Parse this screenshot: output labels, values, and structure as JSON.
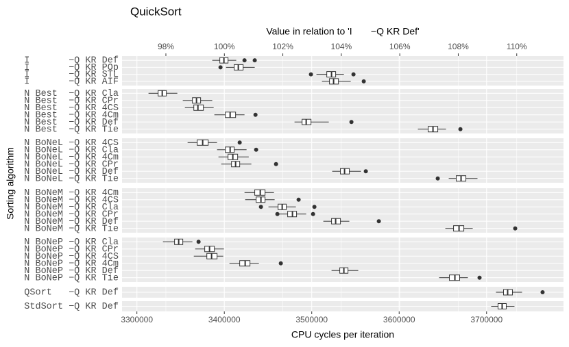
{
  "chart_data": {
    "type": "boxplot",
    "title": "QuickSort",
    "x2_label": "Value in relation to 'I       −Q KR Def'",
    "x_label": "CPU cycles per iteration",
    "y_label": "Sorting algorithm",
    "xlim": [
      3283000,
      3788000
    ],
    "xticks": [
      3300000,
      3400000,
      3500000,
      3600000,
      3700000
    ],
    "x2lim": [
      96.5,
      111.6
    ],
    "x2ticks": [
      {
        "value": 98,
        "label": "98%"
      },
      {
        "value": 100,
        "label": "100%"
      },
      {
        "value": 102,
        "label": "102%"
      },
      {
        "value": 104,
        "label": "104%"
      },
      {
        "value": 106,
        "label": "106%"
      },
      {
        "value": 108,
        "label": "108%"
      },
      {
        "value": 110,
        "label": "110%"
      }
    ],
    "grid": true,
    "panels": [
      {
        "categories": [
          "I       −Q KR Def",
          "I       −Q KR POp",
          "I       −Q KR STL",
          "I       −Q KR AIF"
        ],
        "boxes": [
          {
            "whislo": 3386200,
            "q1": 3394850,
            "med": 3399550,
            "q3": 3404250,
            "whishi": 3413650,
            "fliers": [
              3423100,
              3434800
            ]
          },
          {
            "whislo": 3401900,
            "q1": 3411300,
            "med": 3416000,
            "q3": 3421500,
            "whishi": 3434800,
            "fliers": [
              3395650
            ]
          },
          {
            "whislo": 3505400,
            "q1": 3517200,
            "med": 3522650,
            "q3": 3527350,
            "whishi": 3536800,
            "fliers": [
              3499100,
              3547750
            ]
          },
          {
            "whislo": 3511700,
            "q1": 3520300,
            "med": 3525000,
            "q3": 3530500,
            "whishi": 3544600,
            "fliers": [
              3559500
            ]
          }
        ]
      },
      {
        "categories": [
          "N Best  −Q KR Cla",
          "N Best  −Q KR CPr",
          "N Best  −Q KR 4CS",
          "N Best  −Q KR 4Cm",
          "N Best  −Q KR Def",
          "N Best  −Q KR Tie"
        ],
        "boxes": [
          {
            "whislo": 3313300,
            "q1": 3324300,
            "med": 3329000,
            "q3": 3333700,
            "whishi": 3346250,
            "fliers": []
          },
          {
            "whislo": 3352500,
            "q1": 3363500,
            "med": 3368200,
            "q3": 3372900,
            "whishi": 3386200,
            "fliers": []
          },
          {
            "whislo": 3354900,
            "q1": 3365100,
            "med": 3369800,
            "q3": 3376050,
            "whishi": 3387800,
            "fliers": []
          },
          {
            "whislo": 3388600,
            "q1": 3401150,
            "med": 3406650,
            "q3": 3412900,
            "whishi": 3423100,
            "fliers": [
              3435650
            ]
          },
          {
            "whislo": 3480300,
            "q1": 3488950,
            "med": 3493650,
            "q3": 3499150,
            "whishi": 3519500,
            "fliers": [
              3545400
            ]
          },
          {
            "whislo": 3621400,
            "q1": 3633200,
            "med": 3638700,
            "q3": 3644150,
            "whishi": 3653600,
            "fliers": [
              3670050
            ]
          }
        ]
      },
      {
        "categories": [
          "N BoNeL −Q KR 4CS",
          "N BoNeL −Q KR Cla",
          "N BoNeL −Q KR 4Cm",
          "N BoNeL −Q KR CPr",
          "N BoNeL −Q KR Def",
          "N BoNeL −Q KR Tie"
        ],
        "boxes": [
          {
            "whislo": 3358000,
            "q1": 3369000,
            "med": 3375250,
            "q3": 3381550,
            "whishi": 3391700,
            "fliers": [
              3417600
            ]
          },
          {
            "whislo": 3391700,
            "q1": 3401150,
            "med": 3406650,
            "q3": 3411300,
            "whishi": 3425450,
            "fliers": [
              3436400
            ]
          },
          {
            "whislo": 3393300,
            "q1": 3404250,
            "med": 3409750,
            "q3": 3415250,
            "whishi": 3427950,
            "fliers": []
          },
          {
            "whislo": 3396450,
            "q1": 3408200,
            "med": 3412900,
            "q3": 3417600,
            "whishi": 3430950,
            "fliers": [
              3459150
            ]
          },
          {
            "whislo": 3523400,
            "q1": 3532800,
            "med": 3537550,
            "q3": 3543000,
            "whishi": 3556350,
            "fliers": [
              3561850
            ]
          },
          {
            "whislo": 3656700,
            "q1": 3665300,
            "med": 3670800,
            "q3": 3676300,
            "whishi": 3689600,
            "fliers": [
              3644150
            ]
          }
        ]
      },
      {
        "categories": [
          "N BoNeM −Q KR 4Cm",
          "N BoNeM −Q KR 4CS",
          "N BoNeM −Q KR Cla",
          "N BoNeM −Q KR CPr",
          "N BoNeM −Q KR Def",
          "N BoNeM −Q KR Tie"
        ],
        "boxes": [
          {
            "whislo": 3423100,
            "q1": 3434800,
            "med": 3441100,
            "q3": 3446600,
            "whishi": 3456800,
            "fliers": []
          },
          {
            "whislo": 3423850,
            "q1": 3436400,
            "med": 3441900,
            "q3": 3446600,
            "whishi": 3457550,
            "fliers": [
              3485000
            ]
          },
          {
            "whislo": 3450500,
            "q1": 3461500,
            "med": 3466200,
            "q3": 3470900,
            "whishi": 3481900,
            "fliers": [
              3441900,
              3503050
            ]
          },
          {
            "whislo": 3461500,
            "q1": 3472450,
            "med": 3477950,
            "q3": 3482650,
            "whishi": 3493650,
            "fliers": [
              3460700,
              3501500
            ]
          },
          {
            "whislo": 3513250,
            "q1": 3522650,
            "med": 3527350,
            "q3": 3532850,
            "whishi": 3543000,
            "fliers": [
              3576750
            ]
          },
          {
            "whislo": 3652800,
            "q1": 3662200,
            "med": 3668500,
            "q3": 3673950,
            "whishi": 3684150,
            "fliers": [
              3732750
            ]
          }
        ]
      },
      {
        "categories": [
          "N BoNeP −Q KR Cla",
          "N BoNeP −Q KR CPr",
          "N BoNeP −Q KR 4CS",
          "N BoNeP −Q KR 4Cm",
          "N BoNeP −Q KR Def",
          "N BoNeP −Q KR Tie"
        ],
        "boxes": [
          {
            "whislo": 3329800,
            "q1": 3343100,
            "med": 3347800,
            "q3": 3352500,
            "whishi": 3363500,
            "fliers": [
              3370550
            ]
          },
          {
            "whislo": 3366650,
            "q1": 3377600,
            "med": 3383100,
            "q3": 3388600,
            "whishi": 3399550,
            "fliers": []
          },
          {
            "whislo": 3365100,
            "q1": 3380000,
            "med": 3385450,
            "q3": 3391700,
            "whishi": 3398800,
            "fliers": []
          },
          {
            "whislo": 3405850,
            "q1": 3417600,
            "med": 3423850,
            "q3": 3429350,
            "whishi": 3439550,
            "fliers": [
              3464650
            ]
          },
          {
            "whislo": 3522650,
            "q1": 3532050,
            "med": 3536750,
            "q3": 3541450,
            "whishi": 3553200,
            "fliers": []
          },
          {
            "whislo": 3645700,
            "q1": 3657450,
            "med": 3663750,
            "q3": 3669200,
            "whishi": 3678600,
            "fliers": [
              3691950
            ]
          }
        ]
      },
      {
        "categories": [
          "QSort   −Q KR Def"
        ],
        "boxes": [
          {
            "whislo": 3710750,
            "q1": 3719400,
            "med": 3724100,
            "q3": 3729550,
            "whishi": 3740550,
            "fliers": [
              3764050
            ]
          }
        ]
      },
      {
        "categories": [
          "StdSort −Q KR Def"
        ],
        "boxes": [
          {
            "whislo": 3705250,
            "q1": 3713100,
            "med": 3717800,
            "q3": 3722500,
            "whishi": 3731900,
            "fliers": []
          }
        ]
      }
    ]
  }
}
